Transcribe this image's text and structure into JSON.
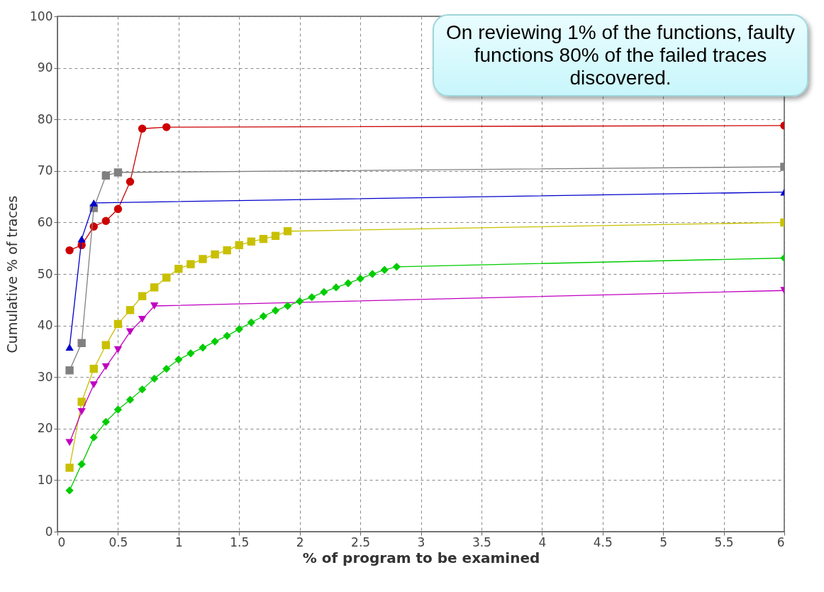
{
  "chart_data": {
    "type": "line",
    "xlabel": "% of program to be examined",
    "ylabel": "Cumulative % of traces",
    "xlim": [
      0,
      6
    ],
    "xticks": [
      0,
      0.5,
      1,
      1.5,
      2,
      2.5,
      3,
      3.5,
      4,
      4.5,
      5,
      5.5,
      6
    ],
    "ylim": [
      0,
      100
    ],
    "yticks": [
      0,
      10,
      20,
      30,
      40,
      50,
      60,
      70,
      80,
      90,
      100
    ],
    "grid": true,
    "annotations": [
      "On reviewing 1% of the functions, faulty functions 80% of the failed traces discovered."
    ],
    "series": [
      {
        "color": "#cc0000",
        "marker": "circle",
        "x": [
          0.1,
          0.2,
          0.3,
          0.4,
          0.5,
          0.6,
          0.7,
          0.9,
          6
        ],
        "values": [
          54.6,
          55.6,
          59.2,
          60.3,
          62.6,
          67.9,
          78.2,
          78.5,
          78.8
        ]
      },
      {
        "color": "#808080",
        "marker": "square",
        "x": [
          0.1,
          0.2,
          0.3,
          0.4,
          0.5,
          6
        ],
        "values": [
          31.3,
          36.6,
          62.8,
          69.1,
          69.7,
          70.8
        ]
      },
      {
        "color": "#0000cc",
        "marker": "triangle",
        "x": [
          0.1,
          0.2,
          0.3,
          6
        ],
        "values": [
          35.8,
          56.8,
          63.8,
          65.9
        ]
      },
      {
        "color": "#c8c000",
        "marker": "square",
        "x": [
          0.1,
          0.2,
          0.3,
          0.4,
          0.5,
          0.6,
          0.7,
          0.8,
          0.9,
          1.0,
          1.1,
          1.2,
          1.3,
          1.4,
          1.5,
          1.6,
          1.7,
          1.8,
          1.9,
          6
        ],
        "values": [
          12.4,
          25.2,
          31.6,
          36.2,
          40.3,
          43.0,
          45.7,
          47.4,
          49.3,
          51.0,
          51.9,
          52.9,
          53.8,
          54.6,
          55.6,
          56.3,
          56.8,
          57.4,
          58.3,
          60.0
        ]
      },
      {
        "color": "#c000c0",
        "marker": "triangle-down",
        "x": [
          0.1,
          0.2,
          0.3,
          0.4,
          0.5,
          0.6,
          0.7,
          0.8,
          6
        ],
        "values": [
          17.3,
          23.3,
          28.5,
          32.0,
          35.3,
          38.8,
          41.2,
          43.8,
          46.8
        ]
      },
      {
        "color": "#00cc00",
        "marker": "diamond",
        "x": [
          0.1,
          0.2,
          0.3,
          0.4,
          0.5,
          0.6,
          0.7,
          0.8,
          0.9,
          1.0,
          1.1,
          1.2,
          1.3,
          1.4,
          1.5,
          1.6,
          1.7,
          1.8,
          1.9,
          2.0,
          2.1,
          2.2,
          2.3,
          2.4,
          2.5,
          2.6,
          2.7,
          2.8,
          6
        ],
        "values": [
          8.0,
          13.1,
          18.3,
          21.3,
          23.7,
          25.6,
          27.6,
          29.7,
          31.6,
          33.4,
          34.6,
          35.7,
          36.9,
          38.0,
          39.3,
          40.6,
          41.8,
          42.9,
          43.8,
          44.7,
          45.5,
          46.5,
          47.4,
          48.2,
          49.1,
          50.0,
          50.8,
          51.4,
          53.1
        ]
      }
    ]
  }
}
